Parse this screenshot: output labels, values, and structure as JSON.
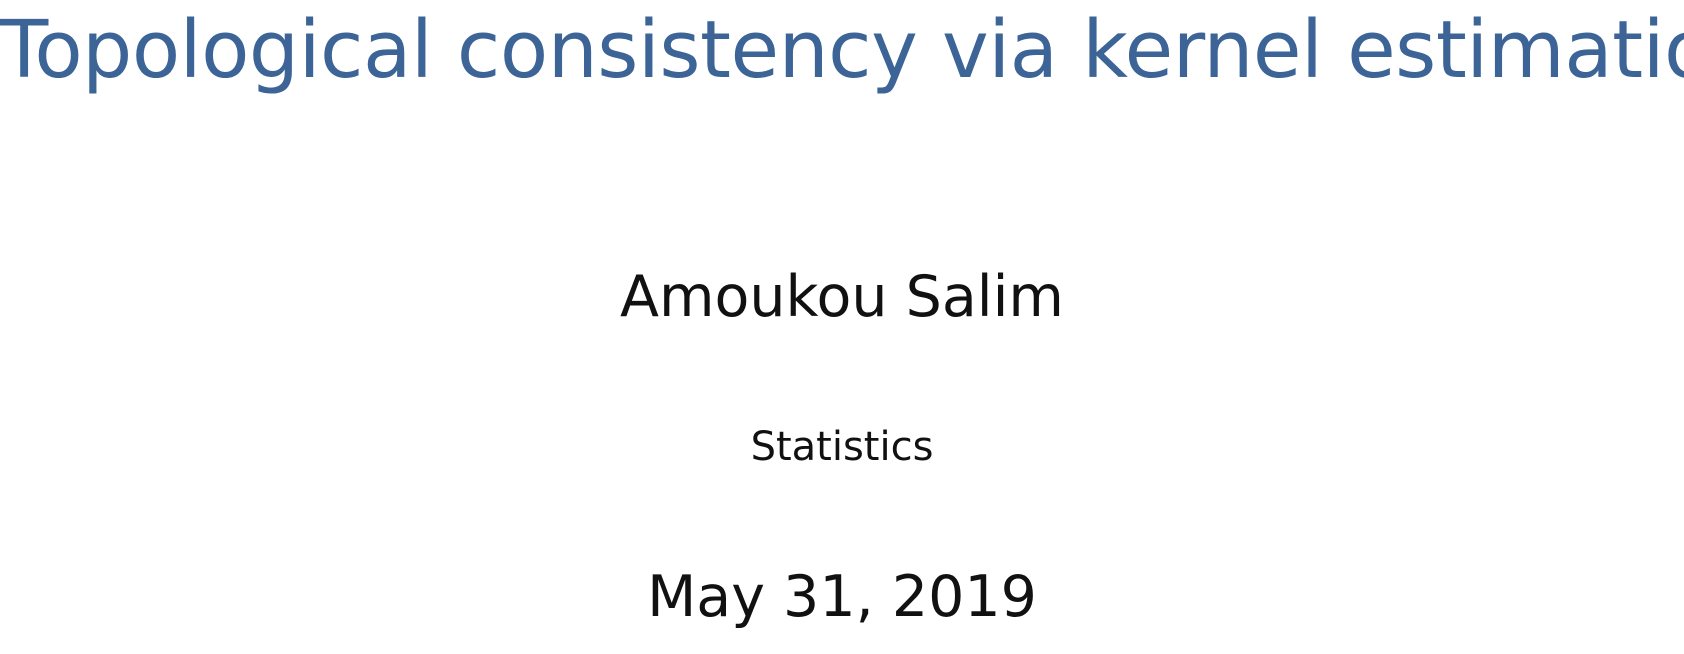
{
  "slide": {
    "title": "Topological consistency via kernel estimation",
    "author": "Amoukou Salim",
    "institute": "Statistics",
    "date": "May 31, 2019"
  },
  "colors": {
    "title": "#3c6496",
    "text": "#111111",
    "background": "#ffffff"
  }
}
